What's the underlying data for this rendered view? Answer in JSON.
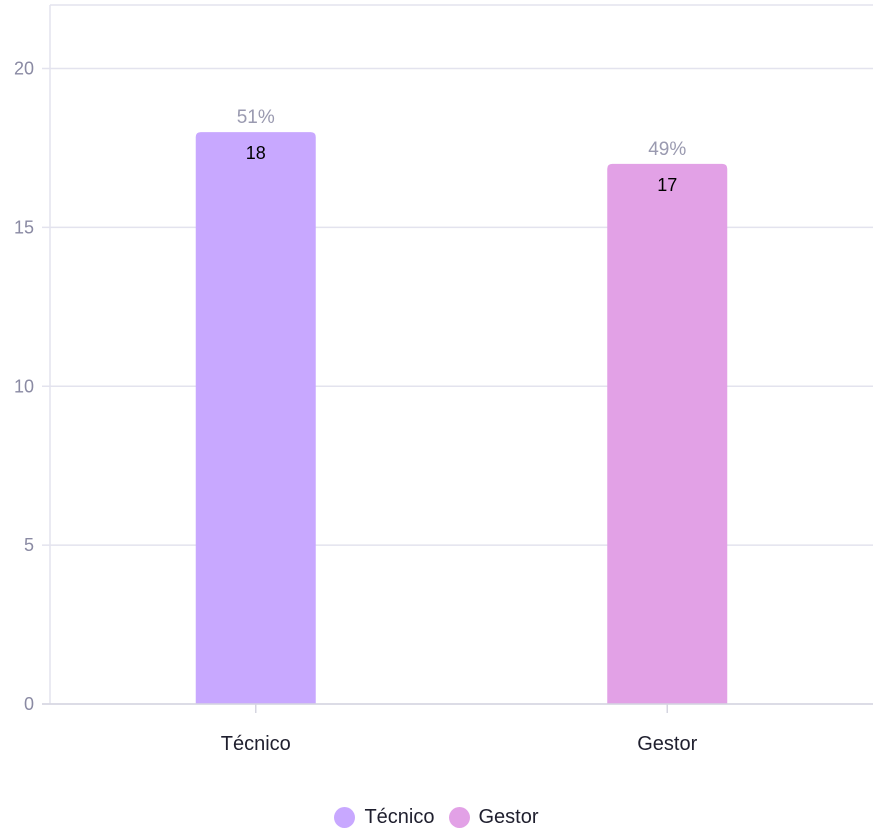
{
  "chart_data": {
    "type": "bar",
    "categories": [
      "Técnico",
      "Gestor"
    ],
    "values": [
      18,
      17
    ],
    "percent_labels": [
      "51%",
      "49%"
    ],
    "colors": [
      "#c8a8ff",
      "#e2a1e6"
    ],
    "ylim": [
      0,
      22
    ],
    "yticks": [
      "0",
      "5",
      "10",
      "15",
      "20"
    ],
    "ytick_values": [
      0,
      5,
      10,
      15,
      20
    ],
    "grid": true,
    "legend_position": "bottom-center",
    "legend": [
      "Técnico",
      "Gestor"
    ]
  }
}
